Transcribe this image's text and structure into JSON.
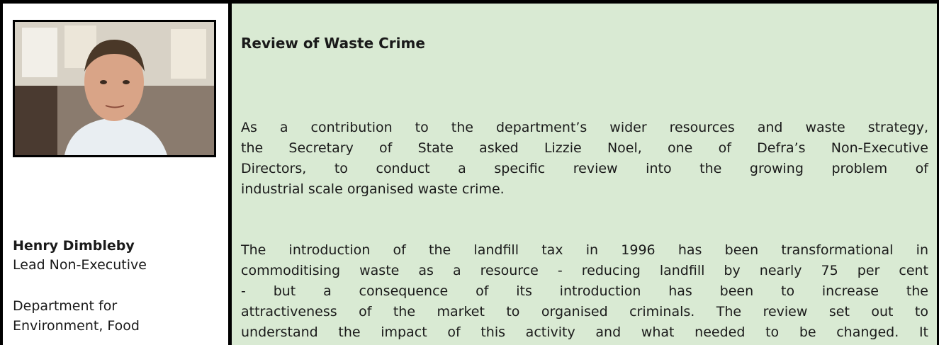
{
  "profile": {
    "name": "Henry Dimbleby",
    "role": "Lead Non-Executive",
    "organisation_lines": [
      "Department for",
      "Environment, Food"
    ]
  },
  "article": {
    "title": "Review of Waste Crime",
    "paragraphs": [
      [
        "As a contribution to the department’s wider resources and waste strategy,",
        "the Secretary of State asked Lizzie Noel, one of Defra’s Non-Executive",
        "Directors, to conduct a specific review into the growing problem of",
        "industrial scale organised waste crime."
      ],
      [
        "The introduction of the landfill tax in 1996 has been transformational in",
        "commoditising waste as a resource - reducing landfill by nearly 75 per cent",
        "- but a consequence of its introduction has been to increase the",
        "attractiveness of the market to organised criminals.  The review set out to",
        "understand the impact of this activity and what needed to be changed.  It"
      ]
    ]
  }
}
